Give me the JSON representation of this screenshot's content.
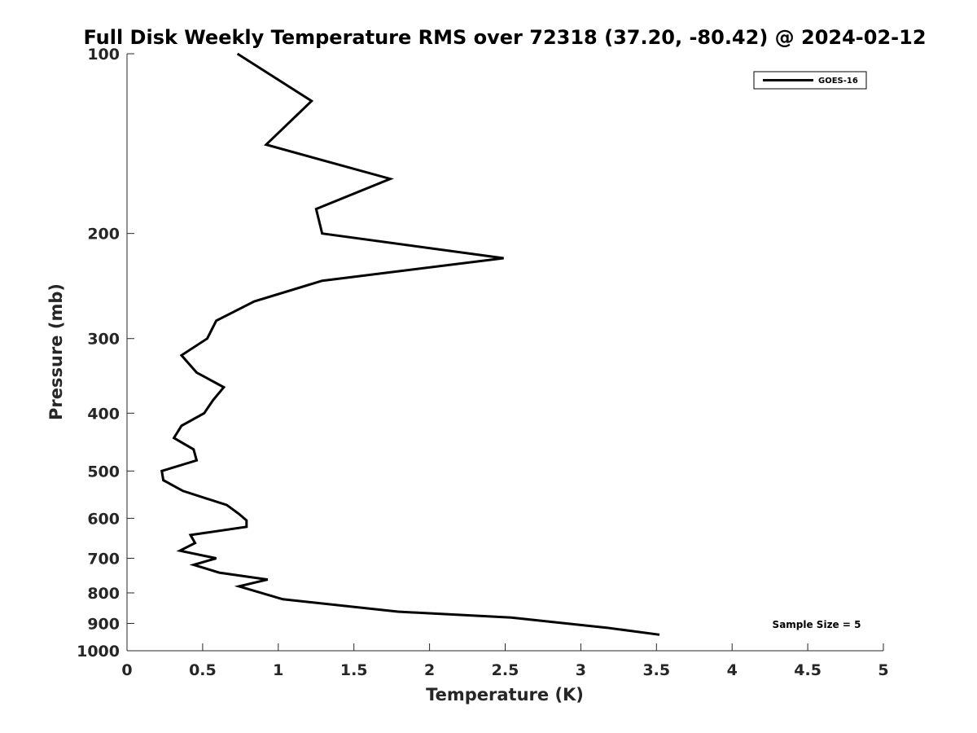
{
  "chart_data": {
    "type": "line",
    "title": "Full Disk Weekly Temperature RMS over 72318 (37.20, -80.42) @ 2024-02-12",
    "xlabel": "Temperature (K)",
    "ylabel": "Pressure (mb)",
    "xlim": [
      0,
      5
    ],
    "ylim": [
      1000,
      100
    ],
    "y_scale": "log",
    "y_reversed": true,
    "x_ticks": [
      0,
      0.5,
      1,
      1.5,
      2,
      2.5,
      3,
      3.5,
      4,
      4.5,
      5
    ],
    "x_tick_labels": [
      "0",
      "0.5",
      "1",
      "1.5",
      "2",
      "2.5",
      "3",
      "3.5",
      "4",
      "4.5",
      "5"
    ],
    "y_ticks": [
      100,
      200,
      300,
      400,
      500,
      600,
      700,
      800,
      900,
      1000
    ],
    "y_tick_labels": [
      "100",
      "200",
      "300",
      "400",
      "500",
      "600",
      "700",
      "800",
      "900",
      "1000"
    ],
    "grid": false,
    "legend_position": "top-right",
    "series": [
      {
        "name": "GOES-16",
        "color": "#000000",
        "points": [
          {
            "x": 0.73,
            "p": 100
          },
          {
            "x": 1.22,
            "p": 120
          },
          {
            "x": 0.92,
            "p": 142
          },
          {
            "x": 1.74,
            "p": 162
          },
          {
            "x": 1.25,
            "p": 182
          },
          {
            "x": 1.29,
            "p": 200
          },
          {
            "x": 2.49,
            "p": 220
          },
          {
            "x": 1.29,
            "p": 240
          },
          {
            "x": 0.84,
            "p": 260
          },
          {
            "x": 0.59,
            "p": 280
          },
          {
            "x": 0.53,
            "p": 300
          },
          {
            "x": 0.36,
            "p": 320
          },
          {
            "x": 0.46,
            "p": 342
          },
          {
            "x": 0.64,
            "p": 362
          },
          {
            "x": 0.57,
            "p": 380
          },
          {
            "x": 0.51,
            "p": 400
          },
          {
            "x": 0.36,
            "p": 420
          },
          {
            "x": 0.31,
            "p": 440
          },
          {
            "x": 0.44,
            "p": 460
          },
          {
            "x": 0.46,
            "p": 480
          },
          {
            "x": 0.23,
            "p": 500
          },
          {
            "x": 0.24,
            "p": 518
          },
          {
            "x": 0.37,
            "p": 540
          },
          {
            "x": 0.66,
            "p": 570
          },
          {
            "x": 0.74,
            "p": 590
          },
          {
            "x": 0.79,
            "p": 605
          },
          {
            "x": 0.79,
            "p": 620
          },
          {
            "x": 0.42,
            "p": 640
          },
          {
            "x": 0.45,
            "p": 660
          },
          {
            "x": 0.35,
            "p": 680
          },
          {
            "x": 0.59,
            "p": 700
          },
          {
            "x": 0.44,
            "p": 718
          },
          {
            "x": 0.61,
            "p": 740
          },
          {
            "x": 0.93,
            "p": 760
          },
          {
            "x": 0.74,
            "p": 780
          },
          {
            "x": 1.03,
            "p": 820
          },
          {
            "x": 1.79,
            "p": 860
          },
          {
            "x": 2.54,
            "p": 880
          },
          {
            "x": 3.17,
            "p": 915
          },
          {
            "x": 3.52,
            "p": 940
          }
        ]
      }
    ],
    "annotations": [
      {
        "text": "Sample Size = 5",
        "position": "bottom-right"
      }
    ]
  }
}
